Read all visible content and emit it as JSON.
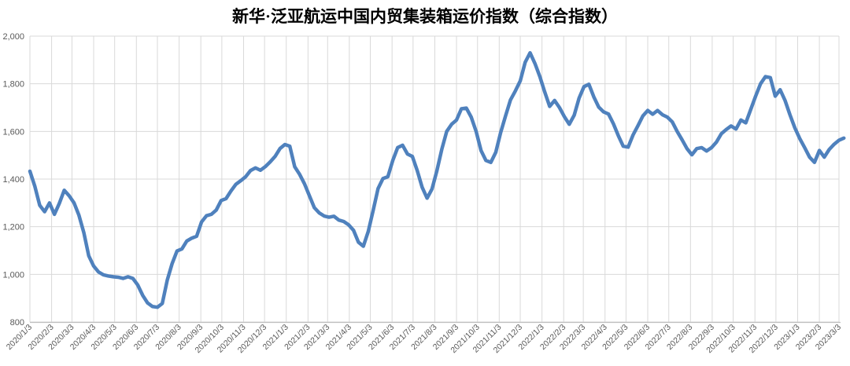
{
  "title": "新华·泛亚航运中国内贸集装箱运价指数（综合指数）",
  "colors": {
    "line": "#4F81BD",
    "gridline": "#D9D9D9",
    "axis_line": "#BFBFBF",
    "tick_label": "#595959",
    "title_text": "#000000",
    "background": "#FFFFFF"
  },
  "chart_data": {
    "type": "line",
    "title": "新华·泛亚航运中国内贸集装箱运价指数（综合指数）",
    "xlabel": "",
    "ylabel": "",
    "ylim": [
      800,
      2000
    ],
    "y_tick_step": 200,
    "grid": true,
    "legend": "none",
    "y_tick_labels": [
      "800",
      "1,000",
      "1,200",
      "1,400",
      "1,600",
      "1,800",
      "2,000"
    ],
    "y_tick_values": [
      800,
      1000,
      1200,
      1400,
      1600,
      1800,
      2000
    ],
    "x_tick_labels": [
      "2020/1/3",
      "2020/2/3",
      "2020/3/3",
      "2020/4/3",
      "2020/5/3",
      "2020/6/3",
      "2020/7/3",
      "2020/8/3",
      "2020/9/3",
      "2020/10/3",
      "2020/11/3",
      "2020/12/3",
      "2021/1/3",
      "2021/2/3",
      "2021/3/3",
      "2021/4/3",
      "2021/5/3",
      "2021/6/3",
      "2021/7/3",
      "2021/8/3",
      "2021/9/3",
      "2021/10/3",
      "2021/11/3",
      "2021/12/3",
      "2022/1/3",
      "2022/2/3",
      "2022/3/3",
      "2022/4/3",
      "2022/5/3",
      "2022/6/3",
      "2022/7/3",
      "2022/8/3",
      "2022/9/3",
      "2022/10/3",
      "2022/11/3",
      "2022/12/3",
      "2023/1/3",
      "2023/2/3",
      "2023/3/3"
    ],
    "series": [
      {
        "name": "综合指数",
        "start_date": "2020/1/3",
        "interval_days": 7,
        "values": [
          1433,
          1370,
          1290,
          1263,
          1300,
          1252,
          1298,
          1353,
          1330,
          1300,
          1248,
          1175,
          1078,
          1035,
          1010,
          998,
          993,
          990,
          988,
          983,
          990,
          983,
          955,
          912,
          880,
          865,
          862,
          878,
          975,
          1045,
          1098,
          1107,
          1140,
          1152,
          1160,
          1220,
          1246,
          1252,
          1270,
          1310,
          1318,
          1350,
          1378,
          1393,
          1410,
          1436,
          1447,
          1437,
          1452,
          1472,
          1495,
          1528,
          1545,
          1538,
          1452,
          1420,
          1380,
          1330,
          1280,
          1258,
          1245,
          1240,
          1244,
          1228,
          1222,
          1208,
          1185,
          1135,
          1118,
          1180,
          1268,
          1360,
          1402,
          1410,
          1478,
          1532,
          1542,
          1505,
          1495,
          1435,
          1365,
          1320,
          1358,
          1435,
          1525,
          1600,
          1630,
          1648,
          1695,
          1698,
          1660,
          1600,
          1520,
          1478,
          1470,
          1512,
          1595,
          1665,
          1732,
          1770,
          1812,
          1890,
          1930,
          1885,
          1830,
          1765,
          1705,
          1730,
          1700,
          1662,
          1630,
          1668,
          1740,
          1788,
          1798,
          1745,
          1702,
          1682,
          1673,
          1632,
          1582,
          1538,
          1534,
          1585,
          1624,
          1665,
          1688,
          1672,
          1688,
          1670,
          1660,
          1640,
          1600,
          1565,
          1528,
          1502,
          1528,
          1532,
          1518,
          1532,
          1555,
          1590,
          1608,
          1623,
          1610,
          1648,
          1636,
          1692,
          1748,
          1800,
          1830,
          1826,
          1748,
          1775,
          1730,
          1670,
          1615,
          1570,
          1532,
          1492,
          1470,
          1520,
          1492,
          1524,
          1546,
          1563,
          1572
        ]
      }
    ]
  }
}
